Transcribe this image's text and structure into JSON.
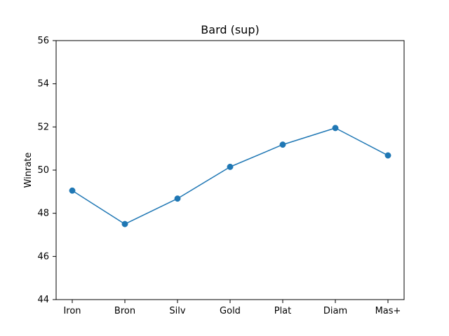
{
  "chart_data": {
    "type": "line",
    "title": "Bard (sup)",
    "xlabel": "",
    "ylabel": "Winrate",
    "categories": [
      "Iron",
      "Bron",
      "Silv",
      "Gold",
      "Plat",
      "Diam",
      "Mas+"
    ],
    "series": [
      {
        "values": [
          49.05,
          47.5,
          48.68,
          50.15,
          51.18,
          51.95,
          50.68
        ],
        "color": "#1f77b4"
      }
    ],
    "ylim": [
      44,
      56
    ],
    "yticks": [
      44,
      46,
      48,
      50,
      52,
      54,
      56
    ],
    "grid": false,
    "legend": "none"
  }
}
